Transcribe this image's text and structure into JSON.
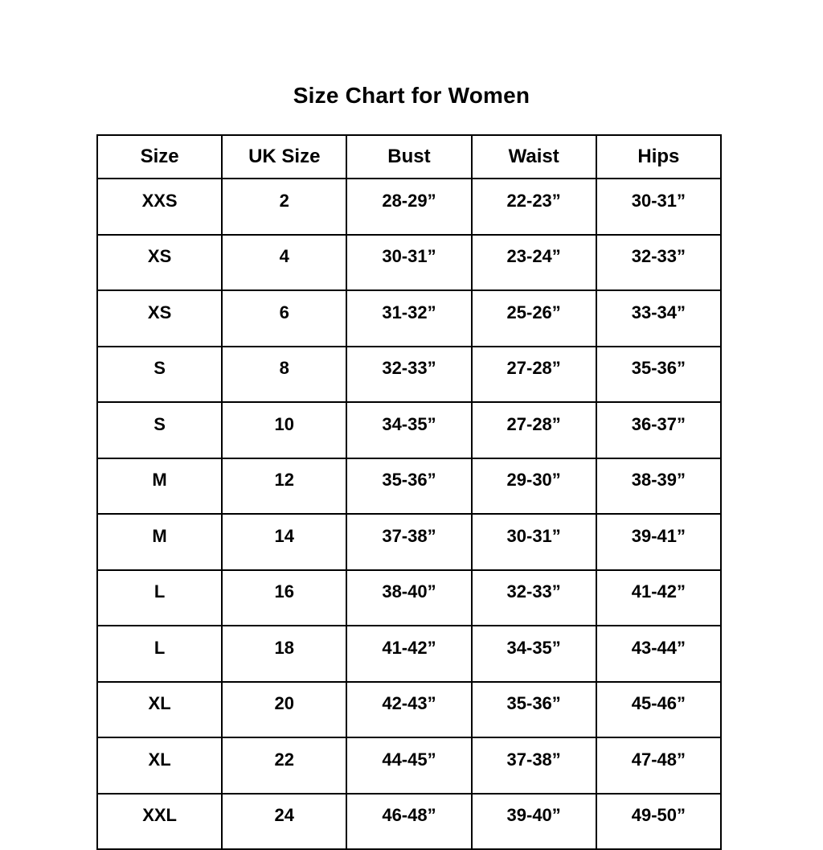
{
  "title": "Size Chart for Women",
  "chart_data": {
    "type": "table",
    "title": "Size Chart for Women",
    "columns": [
      "Size",
      "UK Size",
      "Bust",
      "Waist",
      "Hips"
    ],
    "rows": [
      [
        "XXS",
        "2",
        "28-29”",
        "22-23”",
        "30-31”"
      ],
      [
        "XS",
        "4",
        "30-31”",
        "23-24”",
        "32-33”"
      ],
      [
        "XS",
        "6",
        "31-32”",
        "25-26”",
        "33-34”"
      ],
      [
        "S",
        "8",
        "32-33”",
        "27-28”",
        "35-36”"
      ],
      [
        "S",
        "10",
        "34-35”",
        "27-28”",
        "36-37”"
      ],
      [
        "M",
        "12",
        "35-36”",
        "29-30”",
        "38-39”"
      ],
      [
        "M",
        "14",
        "37-38”",
        "30-31”",
        "39-41”"
      ],
      [
        "L",
        "16",
        "38-40”",
        "32-33”",
        "41-42”"
      ],
      [
        "L",
        "18",
        "41-42”",
        "34-35”",
        "43-44”"
      ],
      [
        "XL",
        "20",
        "42-43”",
        "35-36”",
        "45-46”"
      ],
      [
        "XL",
        "22",
        "44-45”",
        "37-38”",
        "47-48”"
      ],
      [
        "XXL",
        "24",
        "46-48”",
        "39-40”",
        "49-50”"
      ]
    ],
    "text_color": "#000000",
    "border_color": "#000000",
    "background_color": "#ffffff",
    "grid": true,
    "layout": "header row on top, all text bold and centered"
  }
}
